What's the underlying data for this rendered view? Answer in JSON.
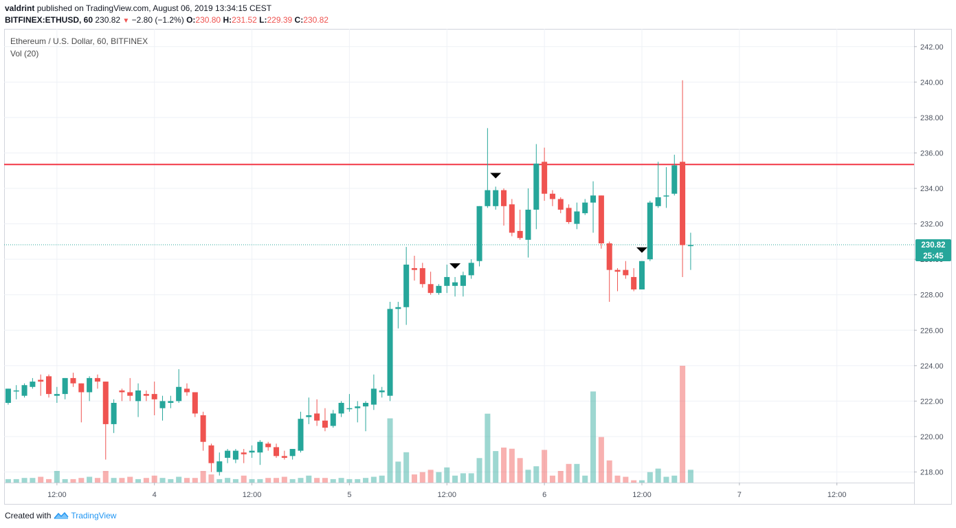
{
  "header": {
    "publisher": "valdrint",
    "published_text": "published on TradingView.com, August 06, 2019 13:34:15 CEST",
    "symbol": "BITFINEX:ETHUSD, 60",
    "last": "230.82",
    "change": "−2.80 (−1.2%)",
    "open_label": "O:",
    "open": "230.80",
    "high_label": "H:",
    "high": "231.52",
    "low_label": "L:",
    "low": "229.39",
    "close_label": "C:",
    "close": "230.82"
  },
  "legend": {
    "title": "Ethereum / U.S. Dollar, 60, BITFINEX",
    "volume": "Vol (20)"
  },
  "price_badge": {
    "price": "230.82",
    "countdown": "25:45"
  },
  "footer": {
    "created_with": "Created with",
    "brand": "TradingView"
  },
  "colors": {
    "up": "#26a69a",
    "down": "#ef5350",
    "resistance": "#f23645",
    "grid": "#eef1f6"
  },
  "chart_data": {
    "type": "candlestick",
    "title": "Ethereum / U.S. Dollar, 60, BITFINEX",
    "ylim": [
      217.4,
      243.0
    ],
    "y_ticks": [
      218,
      220,
      222,
      224,
      226,
      228,
      230,
      232,
      234,
      236,
      238,
      240,
      242
    ],
    "y_tick_labels": [
      "218.00",
      "220.00",
      "222.00",
      "224.00",
      "226.00",
      "228.00",
      "230.00",
      "232.00",
      "234.00",
      "236.00",
      "238.00",
      "240.00",
      "242.00"
    ],
    "x_tick_labels": [
      {
        "label": "12:00",
        "bar": 6
      },
      {
        "label": "4",
        "bar": 18
      },
      {
        "label": "12:00",
        "bar": 30
      },
      {
        "label": "5",
        "bar": 42
      },
      {
        "label": "12:00",
        "bar": 54
      },
      {
        "label": "6",
        "bar": 66
      },
      {
        "label": "12:00",
        "bar": 78
      },
      {
        "label": "7",
        "bar": 90
      },
      {
        "label": "12:00",
        "bar": 102
      }
    ],
    "bars_total": 112,
    "resistance_level": 235.35,
    "last_price": 230.82,
    "volume_max": 1.0,
    "peak_markers": [
      55,
      60,
      78
    ],
    "candles": [
      {
        "o": 221.9,
        "h": 222.7,
        "l": 221.8,
        "c": 222.7,
        "v": 0.03
      },
      {
        "o": 222.6,
        "h": 222.9,
        "l": 222.1,
        "c": 222.6,
        "v": 0.03
      },
      {
        "o": 222.3,
        "h": 223.0,
        "l": 222.2,
        "c": 222.9,
        "v": 0.04
      },
      {
        "o": 222.8,
        "h": 223.3,
        "l": 222.7,
        "c": 223.1,
        "v": 0.04
      },
      {
        "o": 223.2,
        "h": 223.5,
        "l": 222.3,
        "c": 223.1,
        "v": 0.05
      },
      {
        "o": 223.4,
        "h": 223.5,
        "l": 222.2,
        "c": 222.4,
        "v": 0.03
      },
      {
        "o": 222.3,
        "h": 222.8,
        "l": 221.9,
        "c": 222.4,
        "v": 0.1
      },
      {
        "o": 222.4,
        "h": 223.3,
        "l": 222.1,
        "c": 223.3,
        "v": 0.03
      },
      {
        "o": 223.3,
        "h": 223.6,
        "l": 222.8,
        "c": 223.0,
        "v": 0.03
      },
      {
        "o": 223.0,
        "h": 223.0,
        "l": 220.8,
        "c": 222.5,
        "v": 0.04
      },
      {
        "o": 222.5,
        "h": 223.4,
        "l": 222.0,
        "c": 223.3,
        "v": 0.05
      },
      {
        "o": 223.3,
        "h": 223.5,
        "l": 222.7,
        "c": 223.1,
        "v": 0.04
      },
      {
        "o": 223.1,
        "h": 223.1,
        "l": 218.7,
        "c": 220.7,
        "v": 0.1
      },
      {
        "o": 220.7,
        "h": 222.1,
        "l": 220.2,
        "c": 221.9,
        "v": 0.04
      },
      {
        "o": 222.6,
        "h": 222.7,
        "l": 222.0,
        "c": 222.5,
        "v": 0.04
      },
      {
        "o": 222.5,
        "h": 223.3,
        "l": 222.0,
        "c": 222.3,
        "v": 0.05
      },
      {
        "o": 222.0,
        "h": 223.0,
        "l": 221.1,
        "c": 222.6,
        "v": 0.03
      },
      {
        "o": 222.4,
        "h": 222.6,
        "l": 222.0,
        "c": 222.3,
        "v": 0.04
      },
      {
        "o": 222.4,
        "h": 223.1,
        "l": 221.2,
        "c": 222.1,
        "v": 0.06
      },
      {
        "o": 221.6,
        "h": 222.3,
        "l": 220.9,
        "c": 222.0,
        "v": 0.04
      },
      {
        "o": 221.9,
        "h": 222.3,
        "l": 221.6,
        "c": 222.0,
        "v": 0.03
      },
      {
        "o": 222.0,
        "h": 223.8,
        "l": 221.9,
        "c": 222.8,
        "v": 0.05
      },
      {
        "o": 222.7,
        "h": 223.0,
        "l": 222.3,
        "c": 222.5,
        "v": 0.04
      },
      {
        "o": 222.5,
        "h": 222.5,
        "l": 221.1,
        "c": 221.3,
        "v": 0.04
      },
      {
        "o": 221.2,
        "h": 221.4,
        "l": 219.2,
        "c": 219.7,
        "v": 0.1
      },
      {
        "o": 219.5,
        "h": 219.6,
        "l": 218.0,
        "c": 218.5,
        "v": 0.07
      },
      {
        "o": 218.0,
        "h": 219.1,
        "l": 217.8,
        "c": 218.6,
        "v": 0.03
      },
      {
        "o": 218.8,
        "h": 219.3,
        "l": 218.5,
        "c": 219.2,
        "v": 0.04
      },
      {
        "o": 218.7,
        "h": 219.3,
        "l": 218.5,
        "c": 219.2,
        "v": 0.03
      },
      {
        "o": 219.1,
        "h": 219.3,
        "l": 218.5,
        "c": 219.0,
        "v": 0.06
      },
      {
        "o": 219.1,
        "h": 219.5,
        "l": 218.8,
        "c": 219.2,
        "v": 0.03
      },
      {
        "o": 219.1,
        "h": 219.8,
        "l": 218.4,
        "c": 219.7,
        "v": 0.03
      },
      {
        "o": 219.6,
        "h": 219.7,
        "l": 219.2,
        "c": 219.4,
        "v": 0.04
      },
      {
        "o": 219.4,
        "h": 219.6,
        "l": 218.8,
        "c": 218.9,
        "v": 0.04
      },
      {
        "o": 218.9,
        "h": 219.2,
        "l": 218.7,
        "c": 218.8,
        "v": 0.05
      },
      {
        "o": 218.9,
        "h": 219.3,
        "l": 218.7,
        "c": 219.3,
        "v": 0.03
      },
      {
        "o": 219.2,
        "h": 221.4,
        "l": 219.1,
        "c": 221.0,
        "v": 0.04
      },
      {
        "o": 221.1,
        "h": 222.2,
        "l": 220.7,
        "c": 221.2,
        "v": 0.06
      },
      {
        "o": 221.3,
        "h": 222.1,
        "l": 220.6,
        "c": 220.9,
        "v": 0.04
      },
      {
        "o": 220.9,
        "h": 221.6,
        "l": 220.3,
        "c": 220.5,
        "v": 0.04
      },
      {
        "o": 220.6,
        "h": 221.5,
        "l": 220.5,
        "c": 221.3,
        "v": 0.03
      },
      {
        "o": 221.3,
        "h": 222.0,
        "l": 221.1,
        "c": 221.9,
        "v": 0.04
      },
      {
        "o": 221.6,
        "h": 222.4,
        "l": 221.4,
        "c": 221.6,
        "v": 0.03
      },
      {
        "o": 221.6,
        "h": 222.0,
        "l": 220.8,
        "c": 221.7,
        "v": 0.03
      },
      {
        "o": 221.7,
        "h": 222.0,
        "l": 220.3,
        "c": 221.9,
        "v": 0.04
      },
      {
        "o": 221.8,
        "h": 223.5,
        "l": 221.5,
        "c": 222.7,
        "v": 0.05
      },
      {
        "o": 222.5,
        "h": 222.8,
        "l": 222.2,
        "c": 222.6,
        "v": 0.06
      },
      {
        "o": 222.3,
        "h": 227.6,
        "l": 222.0,
        "c": 227.2,
        "v": 0.55
      },
      {
        "o": 227.2,
        "h": 227.6,
        "l": 226.1,
        "c": 227.3,
        "v": 0.18
      },
      {
        "o": 227.3,
        "h": 230.7,
        "l": 226.3,
        "c": 229.7,
        "v": 0.26
      },
      {
        "o": 229.5,
        "h": 230.2,
        "l": 228.8,
        "c": 229.4,
        "v": 0.07
      },
      {
        "o": 229.5,
        "h": 229.8,
        "l": 228.4,
        "c": 228.6,
        "v": 0.09
      },
      {
        "o": 228.6,
        "h": 229.3,
        "l": 228.0,
        "c": 228.1,
        "v": 0.11
      },
      {
        "o": 228.1,
        "h": 228.6,
        "l": 228.0,
        "c": 228.5,
        "v": 0.09
      },
      {
        "o": 228.5,
        "h": 229.7,
        "l": 228.1,
        "c": 229.0,
        "v": 0.13
      },
      {
        "o": 228.5,
        "h": 229.0,
        "l": 227.9,
        "c": 228.7,
        "v": 0.06
      },
      {
        "o": 228.5,
        "h": 229.3,
        "l": 227.9,
        "c": 229.1,
        "v": 0.08
      },
      {
        "o": 229.1,
        "h": 230.0,
        "l": 228.9,
        "c": 229.8,
        "v": 0.08
      },
      {
        "o": 229.9,
        "h": 233.0,
        "l": 229.6,
        "c": 233.0,
        "v": 0.21
      },
      {
        "o": 233.0,
        "h": 237.4,
        "l": 232.9,
        "c": 233.9,
        "v": 0.59
      },
      {
        "o": 233.0,
        "h": 234.1,
        "l": 232.8,
        "c": 233.9,
        "v": 0.27
      },
      {
        "o": 233.9,
        "h": 234.0,
        "l": 231.9,
        "c": 233.0,
        "v": 0.3
      },
      {
        "o": 233.1,
        "h": 233.4,
        "l": 231.3,
        "c": 231.5,
        "v": 0.29
      },
      {
        "o": 231.6,
        "h": 232.8,
        "l": 231.1,
        "c": 231.2,
        "v": 0.21
      },
      {
        "o": 231.1,
        "h": 234.0,
        "l": 230.1,
        "c": 232.8,
        "v": 0.11
      },
      {
        "o": 232.8,
        "h": 236.5,
        "l": 231.7,
        "c": 235.4,
        "v": 0.14
      },
      {
        "o": 235.5,
        "h": 236.3,
        "l": 233.3,
        "c": 233.7,
        "v": 0.28
      },
      {
        "o": 233.7,
        "h": 233.9,
        "l": 233.0,
        "c": 233.4,
        "v": 0.06
      },
      {
        "o": 233.4,
        "h": 233.5,
        "l": 232.6,
        "c": 232.8,
        "v": 0.1
      },
      {
        "o": 232.9,
        "h": 233.1,
        "l": 232.0,
        "c": 232.1,
        "v": 0.16
      },
      {
        "o": 232.0,
        "h": 233.2,
        "l": 231.7,
        "c": 232.7,
        "v": 0.16
      },
      {
        "o": 232.6,
        "h": 233.4,
        "l": 232.5,
        "c": 233.2,
        "v": 0.06
      },
      {
        "o": 233.2,
        "h": 234.4,
        "l": 231.5,
        "c": 233.6,
        "v": 0.78
      },
      {
        "o": 233.6,
        "h": 233.6,
        "l": 230.6,
        "c": 230.9,
        "v": 0.39
      },
      {
        "o": 230.9,
        "h": 231.0,
        "l": 227.6,
        "c": 229.4,
        "v": 0.19
      },
      {
        "o": 229.4,
        "h": 229.5,
        "l": 228.2,
        "c": 229.3,
        "v": 0.06
      },
      {
        "o": 229.4,
        "h": 229.9,
        "l": 228.9,
        "c": 229.1,
        "v": 0.05
      },
      {
        "o": 229.0,
        "h": 229.5,
        "l": 228.2,
        "c": 228.3,
        "v": 0.02
      },
      {
        "o": 228.3,
        "h": 229.9,
        "l": 228.3,
        "c": 229.9,
        "v": 0.02
      },
      {
        "o": 230.0,
        "h": 233.3,
        "l": 229.9,
        "c": 233.2,
        "v": 0.09
      },
      {
        "o": 233.0,
        "h": 235.5,
        "l": 232.9,
        "c": 233.5,
        "v": 0.12
      },
      {
        "o": 233.6,
        "h": 235.2,
        "l": 232.9,
        "c": 233.6,
        "v": 0.05
      },
      {
        "o": 233.7,
        "h": 235.9,
        "l": 233.6,
        "c": 235.3,
        "v": 0.06
      },
      {
        "o": 235.5,
        "h": 240.1,
        "l": 229.0,
        "c": 230.8,
        "v": 1.0
      },
      {
        "o": 230.8,
        "h": 231.5,
        "l": 229.4,
        "c": 230.8,
        "v": 0.11
      }
    ]
  }
}
